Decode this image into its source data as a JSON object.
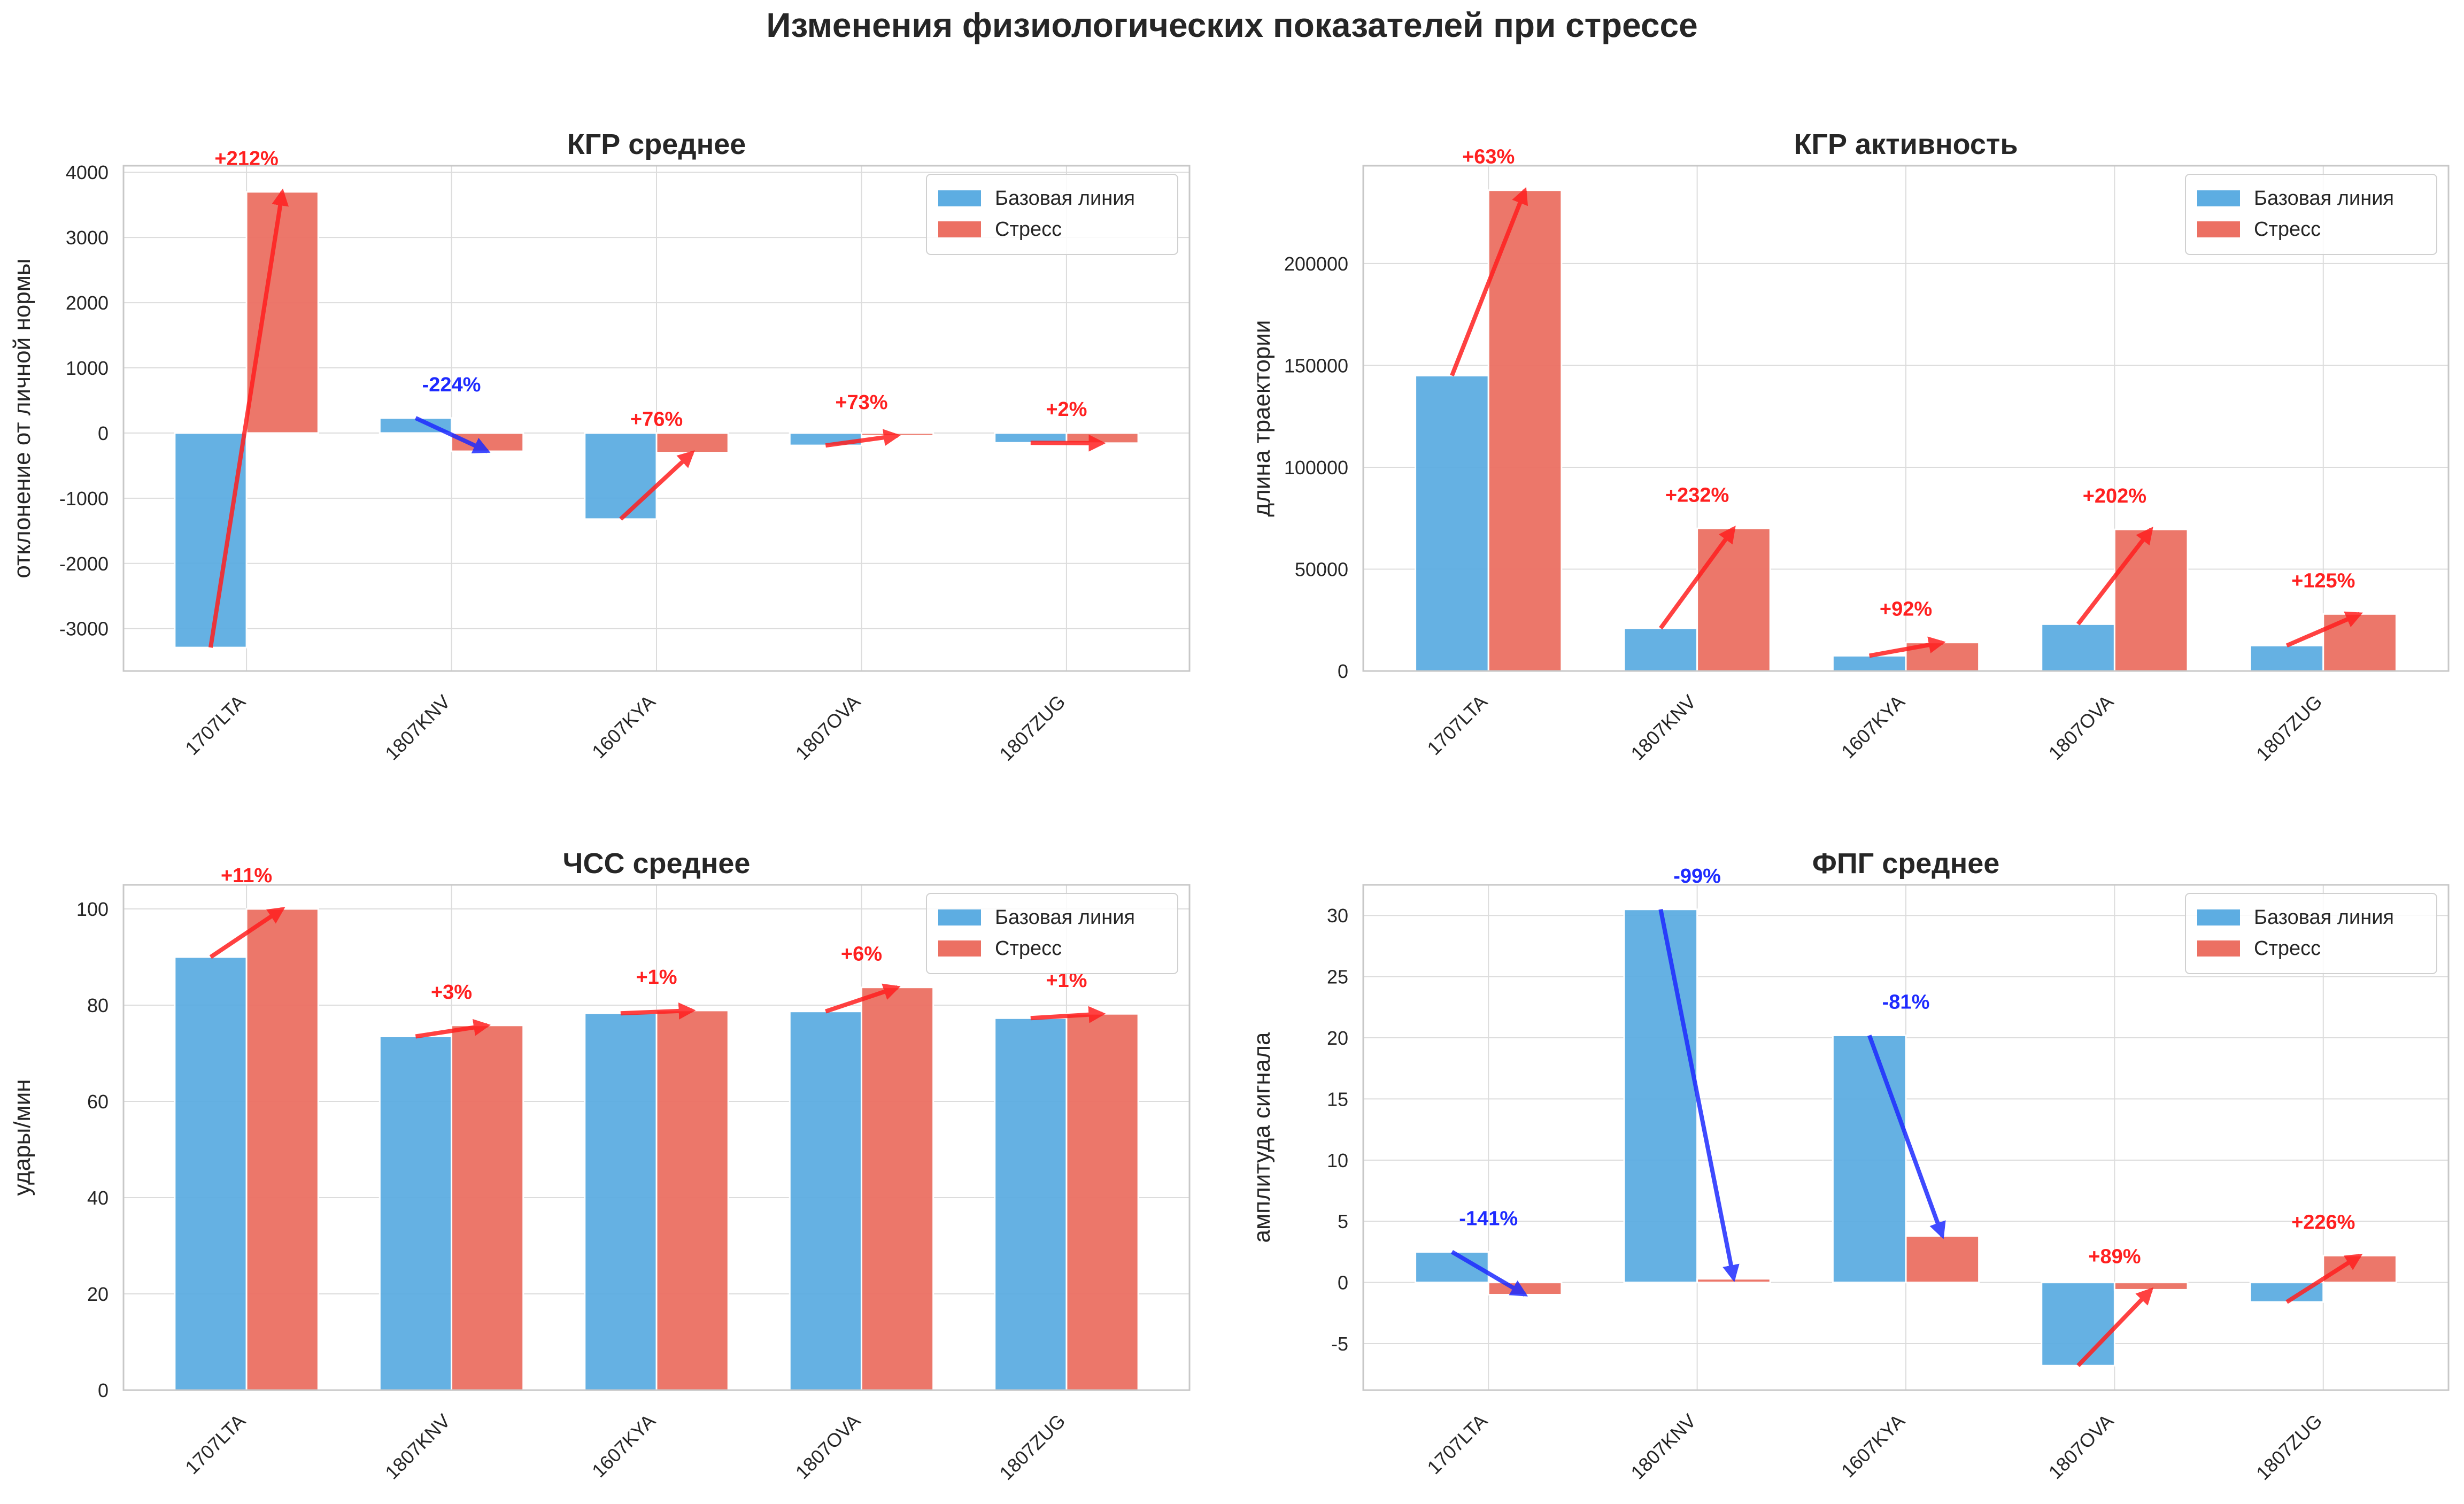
{
  "figure": {
    "title": "Изменения физиологических показателей при стрессе"
  },
  "colors": {
    "baseline": "#5DADE2",
    "stress": "#EC7063",
    "increase": "#FF2020",
    "decrease": "#1E2BFF",
    "grid": "#DCDCDC",
    "axes_edge": "#C8C8C8",
    "text": "#262626"
  },
  "chart_data": [
    {
      "type": "bar",
      "title": "КГР среднее",
      "xlabel": "",
      "ylabel": "отклонение от личной нормы",
      "categories": [
        "1707LTA",
        "1807KNV",
        "1607KYA",
        "1807OVA",
        "1807ZUG"
      ],
      "series": [
        {
          "name": "Базовая линия",
          "values": [
            -3290,
            230,
            -1320,
            -190,
            -150
          ]
        },
        {
          "name": "Стресс",
          "values": [
            3700,
            -280,
            -300,
            -40,
            -155
          ]
        }
      ],
      "change_labels": [
        "+212%",
        "-224%",
        "+76%",
        "+73%",
        "+2%"
      ],
      "ylim": [
        -3650,
        4100
      ],
      "yticks": [
        -3000,
        -2000,
        -1000,
        0,
        1000,
        2000,
        3000,
        4000
      ],
      "ytick_labels": [
        "-3000",
        "-2000",
        "-1000",
        "0",
        "1000",
        "2000",
        "3000",
        "4000"
      ],
      "legend": "top-right",
      "grid": true
    },
    {
      "type": "bar",
      "title": "КГР активность",
      "xlabel": "",
      "ylabel": "длина траектории",
      "categories": [
        "1707LTA",
        "1807KNV",
        "1607KYA",
        "1807OVA",
        "1807ZUG"
      ],
      "series": [
        {
          "name": "Базовая линия",
          "values": [
            145000,
            21000,
            7500,
            23000,
            12500
          ]
        },
        {
          "name": "Стресс",
          "values": [
            236000,
            70000,
            14000,
            69500,
            28000
          ]
        }
      ],
      "change_labels": [
        "+63%",
        "+232%",
        "+92%",
        "+202%",
        "+125%"
      ],
      "ylim": [
        0,
        248000
      ],
      "yticks": [
        0,
        50000,
        100000,
        150000,
        200000
      ],
      "ytick_labels": [
        "0",
        "50000",
        "100000",
        "150000",
        "200000"
      ],
      "legend": "top-right",
      "grid": true
    },
    {
      "type": "bar",
      "title": "ЧСС среднее",
      "xlabel": "",
      "ylabel": "удары/мин",
      "categories": [
        "1707LTA",
        "1807KNV",
        "1607KYA",
        "1807OVA",
        "1807ZUG"
      ],
      "series": [
        {
          "name": "Базовая линия",
          "values": [
            90,
            73.5,
            78.3,
            78.7,
            77.3
          ]
        },
        {
          "name": "Стресс",
          "values": [
            100,
            75.8,
            78.9,
            83.7,
            78.2
          ]
        }
      ],
      "change_labels": [
        "+11%",
        "+3%",
        "+1%",
        "+6%",
        "+1%"
      ],
      "ylim": [
        0,
        105
      ],
      "yticks": [
        0,
        20,
        40,
        60,
        80,
        100
      ],
      "ytick_labels": [
        "0",
        "20",
        "40",
        "60",
        "80",
        "100"
      ],
      "legend": "top-right",
      "grid": true
    },
    {
      "type": "bar",
      "title": "ФПГ среднее",
      "xlabel": "",
      "ylabel": "амплитуда сигнала",
      "categories": [
        "1707LTA",
        "1807KNV",
        "1607KYA",
        "1807OVA",
        "1807ZUG"
      ],
      "series": [
        {
          "name": "Базовая линия",
          "values": [
            2.5,
            30.5,
            20.2,
            -6.8,
            -1.6
          ]
        },
        {
          "name": "Стресс",
          "values": [
            -1.0,
            0.3,
            3.8,
            -0.6,
            2.2
          ]
        }
      ],
      "change_labels": [
        "-141%",
        "-99%",
        "-81%",
        "+89%",
        "+226%"
      ],
      "ylim": [
        -8.8,
        32.5
      ],
      "yticks": [
        -5,
        0,
        5,
        10,
        15,
        20,
        25,
        30
      ],
      "ytick_labels": [
        "-5",
        "0",
        "5",
        "10",
        "15",
        "20",
        "25",
        "30"
      ],
      "legend": "top-right",
      "grid": true
    }
  ]
}
